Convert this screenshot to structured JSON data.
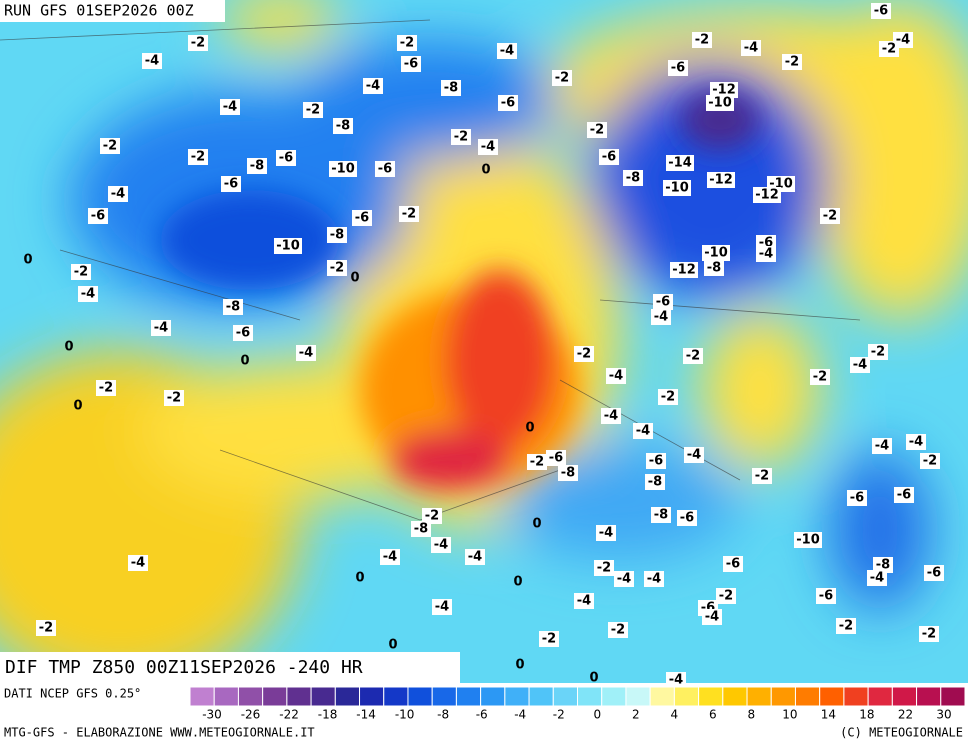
{
  "header": {
    "run": "RUN GFS 01SEP2026 00Z"
  },
  "map": {
    "title": "DIF TMP Z850 00Z11SEP2026 -240 HR",
    "labels": [
      -2,
      -4,
      -2,
      -4,
      -6,
      -2,
      -4,
      -8,
      -6,
      -4,
      -2,
      -8,
      -2,
      -4,
      -2,
      -2,
      -8,
      -6,
      -10,
      -6,
      0,
      -6,
      -4,
      -6,
      -6,
      -2,
      -10,
      -8,
      -2,
      0,
      0,
      -2,
      -4,
      -8,
      -4,
      -6,
      0,
      -4,
      0,
      -2,
      0,
      -2,
      -2,
      -4,
      -6,
      -4,
      -2,
      -6,
      -2,
      -12,
      -10,
      -2,
      -6,
      -14,
      -8,
      -10,
      -12,
      -10,
      -12,
      -2,
      -6,
      -4,
      -10,
      -12,
      -8,
      -6,
      -4,
      -2,
      -2,
      -4,
      -2,
      -4,
      -2,
      -2,
      -4,
      0,
      -4,
      -4,
      -4,
      -2,
      -2,
      -6,
      -8,
      -6,
      -4,
      -8,
      -2,
      -6,
      -6,
      -8,
      -6,
      0,
      -2,
      -8,
      -4,
      -4,
      -4,
      -4,
      -10,
      -8,
      -4,
      -6,
      -6,
      -2,
      -4,
      -4,
      0,
      0,
      -4,
      -4,
      -4,
      -2,
      -6,
      -4,
      -6,
      -2,
      -2,
      -2,
      -2,
      0,
      -2,
      0,
      0,
      -4
    ]
  },
  "colorbar": {
    "colors": [
      "#c080d0",
      "#a868c0",
      "#9050a8",
      "#7a3c98",
      "#603090",
      "#482a90",
      "#2a2898",
      "#1c2ab0",
      "#1438c8",
      "#1050dc",
      "#1868e8",
      "#2080f0",
      "#2c98f4",
      "#40b0f8",
      "#50c4f8",
      "#6ad4f8",
      "#80e4f8",
      "#a0f0f8",
      "#c8f8f8",
      "#fff8a0",
      "#fff060",
      "#ffe020",
      "#ffc800",
      "#ffb000",
      "#ff9800",
      "#ff7c00",
      "#ff6000",
      "#f04020",
      "#e02840",
      "#d01848",
      "#b81050",
      "#a00c50"
    ],
    "ticks": [
      -30,
      -26,
      -22,
      -18,
      -14,
      -10,
      -8,
      -6,
      -4,
      -2,
      0,
      2,
      4,
      6,
      8,
      10,
      14,
      18,
      22,
      30
    ]
  },
  "footer": {
    "source": "DATI NCEP GFS 0.25°",
    "credit": "MTG-GFS - ELABORAZIONE WWW.METEOGIORNALE.IT",
    "copyright": "(C) METEOGIORNALE"
  }
}
